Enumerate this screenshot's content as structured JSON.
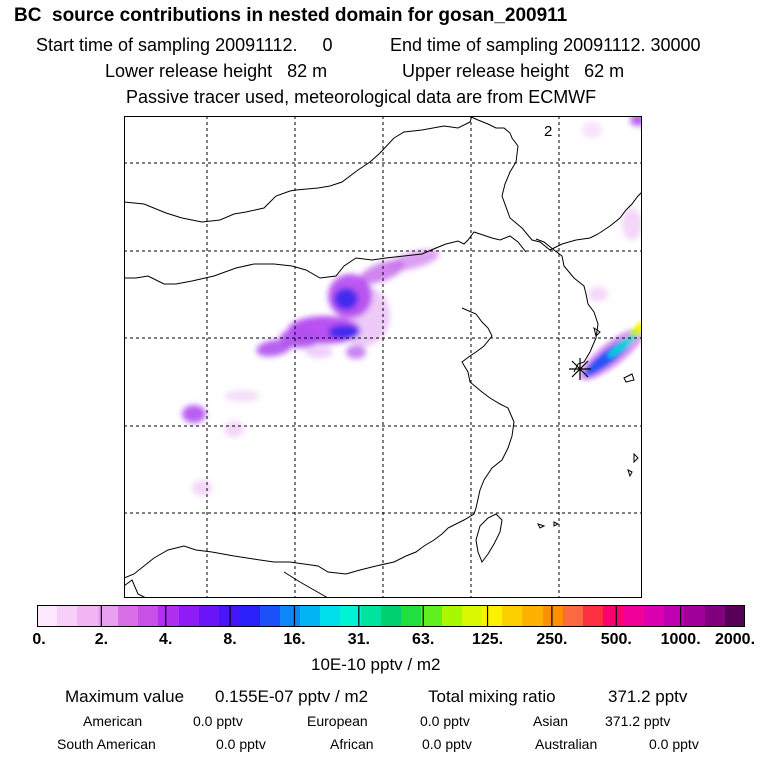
{
  "header": {
    "title": "BC  source contributions in nested domain for gosan_200911",
    "start_time": "Start time of sampling 20091112.     0",
    "end_time": "End time of sampling 20091112. 30000",
    "lower_release": "Lower release height   82 m",
    "upper_release": "Upper release height   62 m",
    "tracer_note": "Passive tracer used, meteorological data are from ECMWF"
  },
  "map": {
    "panel_label": "2",
    "receptor_marker": "gosan-station-star"
  },
  "colorbar": {
    "colors": [
      "#fde8fd",
      "#f8cff8",
      "#f2b4f2",
      "#e8a0f0",
      "#d86ee8",
      "#c850e8",
      "#b030f0",
      "#8f1cf6",
      "#6c14f8",
      "#4a14f8",
      "#2c20f8",
      "#1c50f8",
      "#0c86f8",
      "#00b4f4",
      "#00e0ec",
      "#00f4d4",
      "#00e4a0",
      "#00d070",
      "#20e040",
      "#60f020",
      "#a8f800",
      "#d8f800",
      "#fcf000",
      "#fcd000",
      "#fcb000",
      "#fc9000",
      "#fc6840",
      "#fc3040",
      "#fc0070",
      "#f00098",
      "#dc00b0",
      "#c000b0",
      "#a00098",
      "#800080",
      "#580058"
    ],
    "tick_labels": [
      "0.",
      "2.",
      "4.",
      "8.",
      "16.",
      "31.",
      "63.",
      "125.",
      "250.",
      "500.",
      "1000.",
      "2000."
    ],
    "units": "10E-10 pptv / m2"
  },
  "stats": {
    "max_label": "Maximum value",
    "max_value": "0.155E-07 pptv / m2",
    "total_label": "Total mixing ratio",
    "total_value": "371.2 pptv",
    "regions": [
      {
        "name": "American",
        "value": "0.0 pptv"
      },
      {
        "name": "European",
        "value": "0.0 pptv"
      },
      {
        "name": "Asian",
        "value": "371.2 pptv"
      },
      {
        "name": "South American",
        "value": "0.0 pptv"
      },
      {
        "name": "African",
        "value": "0.0 pptv"
      },
      {
        "name": "Australian",
        "value": "0.0 pptv"
      }
    ]
  }
}
